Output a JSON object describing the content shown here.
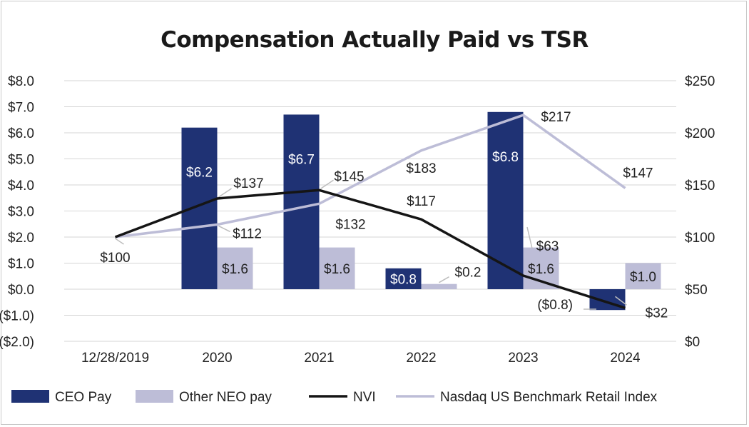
{
  "chart_data": {
    "type": "bar",
    "title": "Compensation Actually Paid vs TSR",
    "categories": [
      "12/28/2019",
      "2020",
      "2021",
      "2022",
      "2023",
      "2024"
    ],
    "y_left": {
      "ylim": [
        -2.0,
        8.0
      ],
      "ticks": [
        8.0,
        7.0,
        6.0,
        5.0,
        4.0,
        3.0,
        2.0,
        1.0,
        0.0,
        -1.0,
        -2.0
      ],
      "tick_labels": [
        "$8.0",
        "$7.0",
        "$6.0",
        "$5.0",
        "$4.0",
        "$3.0",
        "$2.0",
        "$1.0",
        "$0.0",
        "($1.0)",
        "($2.0)"
      ]
    },
    "y_right": {
      "ylim": [
        0,
        250
      ],
      "ticks": [
        250,
        200,
        150,
        100,
        50,
        0
      ],
      "tick_labels": [
        "$250",
        "$200",
        "$150",
        "$100",
        "$50",
        "$0"
      ]
    },
    "grid": true,
    "legend_position": "bottom",
    "series": [
      {
        "name": "CEO Pay",
        "kind": "bar",
        "axis": "left",
        "color": "#1f3274",
        "values": [
          null,
          6.2,
          6.7,
          0.8,
          6.8,
          -0.8
        ],
        "labels": [
          null,
          "$6.2",
          "$6.7",
          "$0.8",
          "$6.8",
          "($0.8)"
        ]
      },
      {
        "name": "Other NEO pay",
        "kind": "bar",
        "axis": "left",
        "color": "#bdbdd7",
        "values": [
          null,
          1.6,
          1.6,
          0.2,
          1.6,
          1.0
        ],
        "labels": [
          null,
          "$1.6",
          "$1.6",
          "$0.2",
          "$1.6",
          "$1.0"
        ]
      },
      {
        "name": "NVI",
        "kind": "line",
        "axis": "right",
        "color": "#151515",
        "values": [
          100,
          137,
          145,
          117,
          63,
          32
        ],
        "labels": [
          "$100",
          "$137",
          "$145",
          "$117",
          "$63",
          "$32"
        ]
      },
      {
        "name": "Nasdaq US Benchmark Retail Index",
        "kind": "line",
        "axis": "right",
        "color": "#bdbdd7",
        "values": [
          100,
          112,
          132,
          183,
          217,
          147
        ],
        "labels": [
          "$100",
          "$112",
          "$132",
          "$183",
          "$217",
          "$147"
        ]
      }
    ]
  }
}
